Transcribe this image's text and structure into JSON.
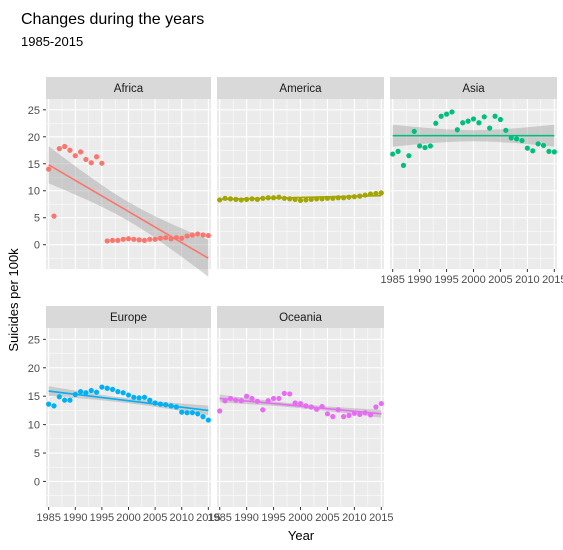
{
  "chart_data": {
    "type": "scatter",
    "title": "Changes during the years",
    "subtitle": "1985-2015",
    "xlabel": "Year",
    "ylabel": "Suicides per 100k",
    "xlim": [
      1984.5,
      2015.5
    ],
    "ylim": [
      -4.5,
      27
    ],
    "x_ticks": [
      1985,
      1990,
      1995,
      2000,
      2005,
      2010,
      2015
    ],
    "y_ticks": [
      0,
      5,
      10,
      15,
      20,
      25
    ],
    "grid": true,
    "smooth": "lm",
    "colors": {
      "Africa": "#F8766D",
      "America": "#A3A500",
      "Asia": "#00BF7D",
      "Europe": "#00B0F6",
      "Oceania": "#E76BF3",
      "panel_bg": "#EBEBEB",
      "strip_bg": "#D9D9D9",
      "ribbon": "#999999"
    },
    "series": [
      {
        "name": "Africa",
        "x": [
          1985,
          1986,
          1987,
          1988,
          1989,
          1990,
          1991,
          1992,
          1993,
          1994,
          1995,
          1996,
          1997,
          1998,
          1999,
          2000,
          2001,
          2002,
          2003,
          2004,
          2005,
          2006,
          2007,
          2008,
          2009,
          2010,
          2011,
          2012,
          2013,
          2014,
          2015
        ],
        "y": [
          14.0,
          5.3,
          17.8,
          18.2,
          17.5,
          16.5,
          17.2,
          15.8,
          15.2,
          16.3,
          15.1,
          0.7,
          0.8,
          0.8,
          1.0,
          1.1,
          1.0,
          0.9,
          0.8,
          1.0,
          1.0,
          1.2,
          1.3,
          1.1,
          1.3,
          1.2,
          1.6,
          1.8,
          2.0,
          1.8,
          1.7
        ],
        "fit": [
          14.8,
          -2.5
        ]
      },
      {
        "name": "America",
        "x": [
          1985,
          1986,
          1987,
          1988,
          1989,
          1990,
          1991,
          1992,
          1993,
          1994,
          1995,
          1996,
          1997,
          1998,
          1999,
          2000,
          2001,
          2002,
          2003,
          2004,
          2005,
          2006,
          2007,
          2008,
          2009,
          2010,
          2011,
          2012,
          2013,
          2014,
          2015
        ],
        "y": [
          8.3,
          8.6,
          8.5,
          8.4,
          8.3,
          8.4,
          8.5,
          8.4,
          8.6,
          8.7,
          8.7,
          8.8,
          8.6,
          8.5,
          8.4,
          8.2,
          8.3,
          8.4,
          8.5,
          8.5,
          8.6,
          8.6,
          8.7,
          8.7,
          8.8,
          8.9,
          9.0,
          9.2,
          9.4,
          9.5,
          9.6
        ],
        "fit": [
          8.4,
          9.1
        ]
      },
      {
        "name": "Asia",
        "x": [
          1985,
          1986,
          1987,
          1988,
          1989,
          1990,
          1991,
          1992,
          1993,
          1994,
          1995,
          1996,
          1997,
          1998,
          1999,
          2000,
          2001,
          2002,
          2003,
          2004,
          2005,
          2006,
          2007,
          2008,
          2009,
          2010,
          2011,
          2012,
          2013,
          2014,
          2015
        ],
        "y": [
          16.8,
          17.3,
          14.7,
          16.5,
          21.0,
          18.3,
          18.0,
          18.3,
          22.5,
          23.8,
          24.2,
          24.6,
          21.3,
          22.6,
          22.9,
          23.3,
          22.6,
          23.7,
          21.6,
          23.8,
          23.2,
          21.2,
          19.8,
          19.6,
          19.3,
          17.9,
          17.4,
          18.7,
          18.4,
          17.3,
          17.2
        ],
        "fit": [
          20.2,
          20.2
        ]
      },
      {
        "name": "Europe",
        "x": [
          1985,
          1986,
          1987,
          1988,
          1989,
          1990,
          1991,
          1992,
          1993,
          1994,
          1995,
          1996,
          1997,
          1998,
          1999,
          2000,
          2001,
          2002,
          2003,
          2004,
          2005,
          2006,
          2007,
          2008,
          2009,
          2010,
          2011,
          2012,
          2013,
          2014,
          2015
        ],
        "y": [
          13.6,
          13.3,
          14.9,
          14.3,
          14.3,
          15.3,
          15.8,
          15.6,
          16.0,
          15.7,
          16.6,
          16.4,
          16.2,
          15.8,
          15.6,
          15.2,
          14.8,
          14.7,
          14.8,
          14.3,
          13.8,
          13.6,
          13.5,
          13.3,
          13.1,
          12.2,
          12.1,
          12.1,
          11.9,
          11.4,
          10.8
        ],
        "fit": [
          15.9,
          12.5
        ]
      },
      {
        "name": "Oceania",
        "x": [
          1985,
          1986,
          1987,
          1988,
          1989,
          1990,
          1991,
          1992,
          1993,
          1994,
          1995,
          1996,
          1997,
          1998,
          1999,
          2000,
          2001,
          2002,
          2003,
          2004,
          2005,
          2006,
          2007,
          2008,
          2009,
          2010,
          2011,
          2012,
          2013,
          2014,
          2015
        ],
        "y": [
          12.4,
          14.2,
          14.6,
          14.3,
          14.2,
          15.0,
          14.6,
          14.1,
          12.6,
          14.2,
          14.6,
          14.6,
          15.5,
          15.4,
          13.8,
          13.7,
          13.3,
          13.1,
          12.7,
          13.2,
          11.9,
          11.4,
          12.6,
          11.4,
          11.6,
          12.0,
          11.8,
          12.1,
          11.7,
          13.1,
          13.7
        ],
        "fit": [
          14.6,
          11.9
        ]
      }
    ]
  }
}
